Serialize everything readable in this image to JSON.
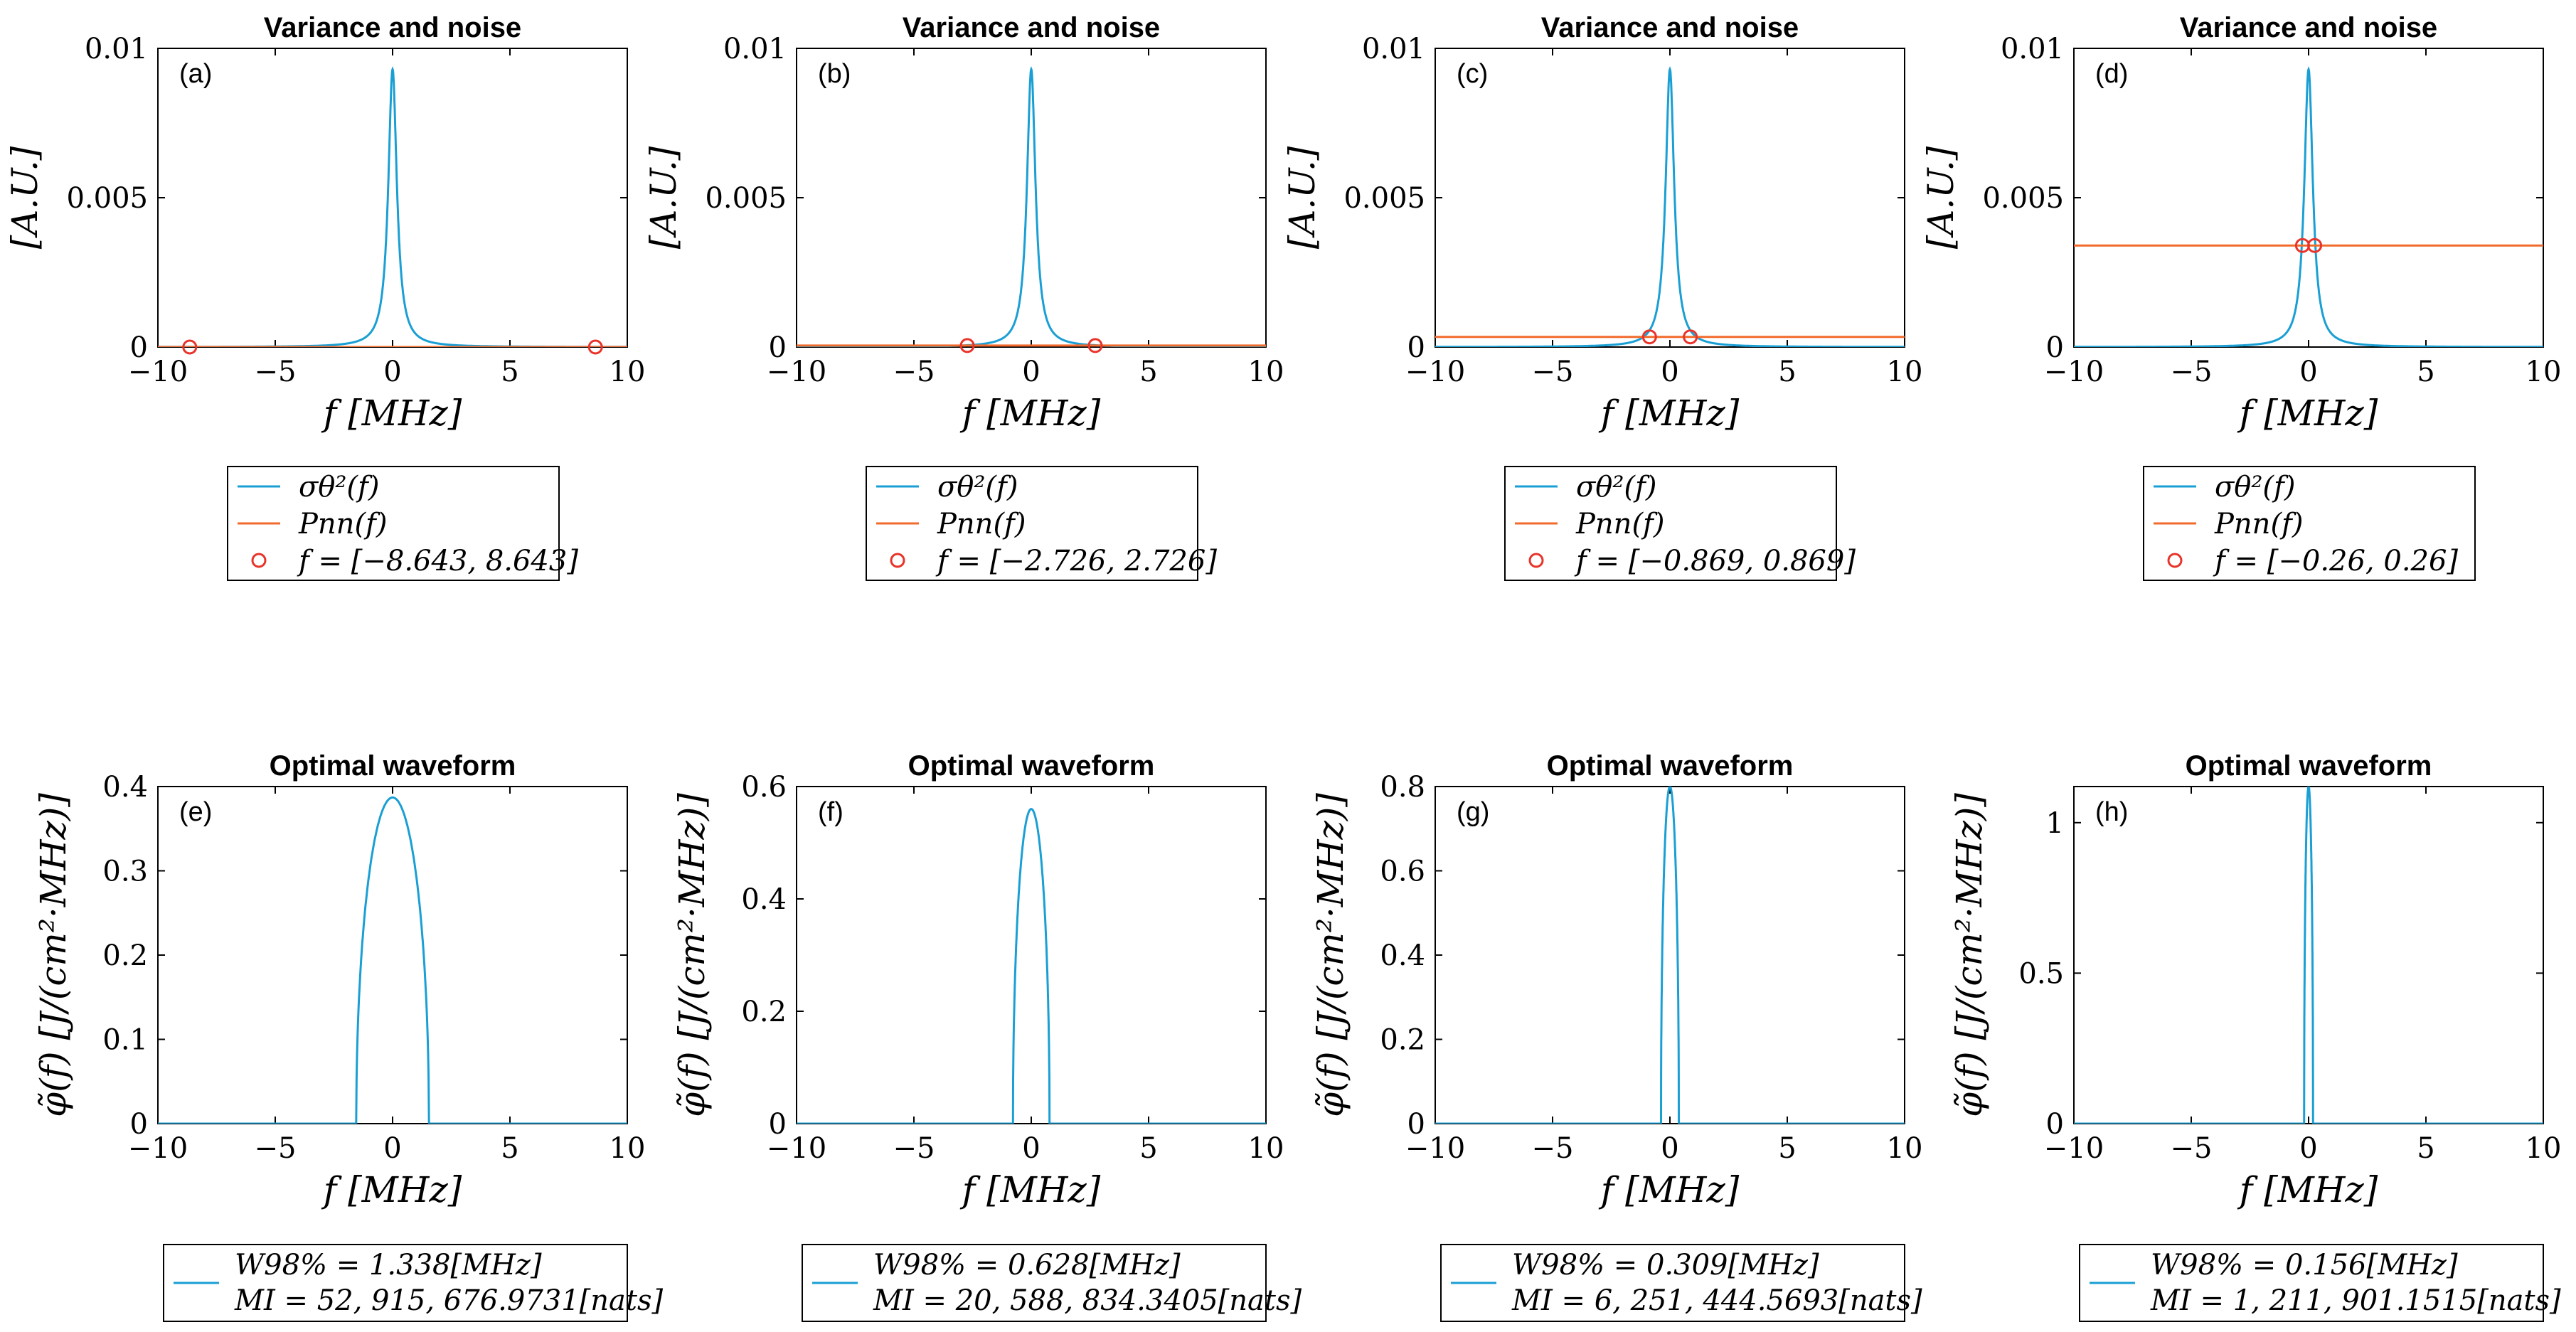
{
  "colors": {
    "variance": "#1a9fd4",
    "noise": "#f26b2d",
    "marker": "#e8332a",
    "waveform": "#1a9fd4",
    "axis": "#000000"
  },
  "chart_data": [
    {
      "type": "line",
      "panel": "(a)",
      "title": "Variance and noise",
      "xlabel": "f    [MHz]",
      "ylabel": "[A.U.]",
      "xlim": [
        -10,
        10
      ],
      "ylim": [
        0,
        0.01
      ],
      "xticks": [
        "−10",
        "−5",
        "0",
        "5",
        "10"
      ],
      "yticks": [
        "0",
        "0.005",
        "0.01"
      ],
      "series": [
        {
          "name": "σθ²(f)",
          "kind": "lorentzian",
          "center": 0,
          "peak": 0.0093,
          "halfwidth": 0.22
        },
        {
          "name": "Pnn(f)",
          "kind": "constant",
          "value": 0.0
        }
      ],
      "markers": {
        "name": "f = [−8.643, 8.643]",
        "x": [
          -8.643,
          8.643
        ],
        "y": [
          0.0,
          0.0
        ]
      },
      "legend": [
        "σθ²(f)",
        "Pnn(f)",
        "f = [−8.643, 8.643]"
      ]
    },
    {
      "type": "line",
      "panel": "(b)",
      "title": "Variance and noise",
      "xlabel": "f    [MHz]",
      "ylabel": "[A.U.]",
      "xlim": [
        -10,
        10
      ],
      "ylim": [
        0,
        0.01
      ],
      "xticks": [
        "−10",
        "−5",
        "0",
        "5",
        "10"
      ],
      "yticks": [
        "0",
        "0.005",
        "0.01"
      ],
      "series": [
        {
          "name": "σθ²(f)",
          "kind": "lorentzian",
          "center": 0,
          "peak": 0.0093,
          "halfwidth": 0.22
        },
        {
          "name": "Pnn(f)",
          "kind": "constant",
          "value": 5e-05
        }
      ],
      "markers": {
        "name": "f = [−2.726, 2.726]",
        "x": [
          -2.726,
          2.726
        ],
        "y": [
          5e-05,
          5e-05
        ]
      },
      "legend": [
        "σθ²(f)",
        "Pnn(f)",
        "f = [−2.726, 2.726]"
      ]
    },
    {
      "type": "line",
      "panel": "(c)",
      "title": "Variance and noise",
      "xlabel": "f    [MHz]",
      "ylabel": "[A.U.]",
      "xlim": [
        -10,
        10
      ],
      "ylim": [
        0,
        0.01
      ],
      "xticks": [
        "−10",
        "−5",
        "0",
        "5",
        "10"
      ],
      "yticks": [
        "0",
        "0.005",
        "0.01"
      ],
      "series": [
        {
          "name": "σθ²(f)",
          "kind": "lorentzian",
          "center": 0,
          "peak": 0.0093,
          "halfwidth": 0.22
        },
        {
          "name": "Pnn(f)",
          "kind": "constant",
          "value": 0.00034
        }
      ],
      "markers": {
        "name": "f = [−0.869, 0.869]",
        "x": [
          -0.869,
          0.869
        ],
        "y": [
          0.00034,
          0.00034
        ]
      },
      "legend": [
        "σθ²(f)",
        "Pnn(f)",
        "f = [−0.869, 0.869]"
      ]
    },
    {
      "type": "line",
      "panel": "(d)",
      "title": "Variance and noise",
      "xlabel": "f    [MHz]",
      "ylabel": "[A.U.]",
      "xlim": [
        -10,
        10
      ],
      "ylim": [
        0,
        0.01
      ],
      "xticks": [
        "−10",
        "−5",
        "0",
        "5",
        "10"
      ],
      "yticks": [
        "0",
        "0.005",
        "0.01"
      ],
      "series": [
        {
          "name": "σθ²(f)",
          "kind": "lorentzian",
          "center": 0,
          "peak": 0.0093,
          "halfwidth": 0.22
        },
        {
          "name": "Pnn(f)",
          "kind": "constant",
          "value": 0.0034
        }
      ],
      "markers": {
        "name": "f = [−0.26, 0.26]",
        "x": [
          -0.26,
          0.26
        ],
        "y": [
          0.0034,
          0.0034
        ]
      },
      "legend": [
        "σθ²(f)",
        "Pnn(f)",
        "f = [−0.26, 0.26]"
      ]
    },
    {
      "type": "line",
      "panel": "(e)",
      "title": "Optimal waveform",
      "xlabel": "f    [MHz]",
      "ylabel": "φ̃(f)    [J/(cm²·MHz)]",
      "xlim": [
        -10,
        10
      ],
      "ylim": [
        0,
        0.4
      ],
      "xticks": [
        "−10",
        "−5",
        "0",
        "5",
        "10"
      ],
      "yticks": [
        "0",
        "0.1",
        "0.2",
        "0.3",
        "0.4"
      ],
      "series": [
        {
          "name": "waveform",
          "kind": "dome",
          "peak": 0.387,
          "cutoff": 1.55
        }
      ],
      "legend": [
        "W98% = 1.338[MHz]",
        "MI = 52, 915, 676.9731[nats]"
      ]
    },
    {
      "type": "line",
      "panel": "(f)",
      "title": "Optimal waveform",
      "xlabel": "f    [MHz]",
      "ylabel": "φ̃(f)    [J/(cm²·MHz)]",
      "xlim": [
        -10,
        10
      ],
      "ylim": [
        0,
        0.6
      ],
      "xticks": [
        "−10",
        "−5",
        "0",
        "5",
        "10"
      ],
      "yticks": [
        "0",
        "0.2",
        "0.4",
        "0.6"
      ],
      "series": [
        {
          "name": "waveform",
          "kind": "dome",
          "peak": 0.56,
          "cutoff": 0.78
        }
      ],
      "legend": [
        "W98% = 0.628[MHz]",
        "MI = 20, 588, 834.3405[nats]"
      ]
    },
    {
      "type": "line",
      "panel": "(g)",
      "title": "Optimal waveform",
      "xlabel": "f    [MHz]",
      "ylabel": "φ̃(f)    [J/(cm²·MHz)]",
      "xlim": [
        -10,
        10
      ],
      "ylim": [
        0,
        0.8
      ],
      "xticks": [
        "−10",
        "−5",
        "0",
        "5",
        "10"
      ],
      "yticks": [
        "0",
        "0.2",
        "0.4",
        "0.6",
        "0.8"
      ],
      "series": [
        {
          "name": "waveform",
          "kind": "dome",
          "peak": 0.8,
          "cutoff": 0.38
        }
      ],
      "legend": [
        "W98% = 0.309[MHz]",
        "MI = 6, 251, 444.5693[nats]"
      ]
    },
    {
      "type": "line",
      "panel": "(h)",
      "title": "Optimal waveform",
      "xlabel": "f    [MHz]",
      "ylabel": "φ̃(f)    [J/(cm²·MHz)]",
      "xlim": [
        -10,
        10
      ],
      "ylim": [
        0,
        1.12
      ],
      "xticks": [
        "−10",
        "−5",
        "0",
        "5",
        "10"
      ],
      "yticks": [
        "0",
        "0.5",
        "1"
      ],
      "ytick_values": [
        0,
        0.5,
        1
      ],
      "series": [
        {
          "name": "waveform",
          "kind": "dome",
          "peak": 1.12,
          "cutoff": 0.19
        }
      ],
      "legend": [
        "W98% = 0.156[MHz]",
        "MI = 1, 211, 901.1515[nats]"
      ]
    }
  ]
}
